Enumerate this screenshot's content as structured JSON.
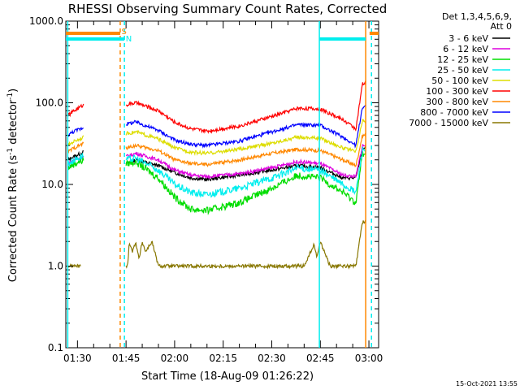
{
  "chart_data": {
    "type": "line",
    "title": "RHESSI Observing Summary Count Rates, Corrected",
    "xlabel": "Start Time (18-Aug-09 01:26:22)",
    "ylabel": "Corrected Count Rate (s⁻¹ detector⁻¹)",
    "ylabel_parts": {
      "base": "Corrected Count Rate (s",
      "sup1": "-1",
      "mid": " detector",
      "sup2": "-1",
      "end": ")"
    },
    "y_scale": "log",
    "ylim": [
      0.1,
      1000
    ],
    "y_tick_labels": [
      "0.1",
      "1.0",
      "10.0",
      "100.0",
      "1000.0"
    ],
    "y_tick_values": [
      0.1,
      1,
      10,
      100,
      1000
    ],
    "xlim_minutes": [
      86.4,
      183
    ],
    "x_tick_labels": [
      "01:30",
      "01:45",
      "02:00",
      "02:15",
      "02:30",
      "02:45",
      "03:00"
    ],
    "x_tick_minutes": [
      90,
      105,
      120,
      135,
      150,
      165,
      180
    ],
    "legend_title_lines": [
      "Det 1,3,4,5,6,9,",
      "Att 0"
    ],
    "legend_placement": "outside-right",
    "series": [
      {
        "name": "3 - 6 keV",
        "color": "#000000",
        "x": [
          87,
          89,
          92,
          105,
          108,
          115,
          120,
          125,
          130,
          140,
          150,
          158,
          165,
          172,
          176,
          178
        ],
        "values": [
          20,
          22,
          25,
          18,
          20,
          17,
          14,
          12,
          11.5,
          13,
          15,
          17,
          16,
          12,
          12,
          28
        ]
      },
      {
        "name": "6 - 12 keV",
        "color": "#dd00dd",
        "x": [
          87,
          89,
          92,
          105,
          108,
          115,
          120,
          125,
          130,
          140,
          150,
          158,
          165,
          172,
          176,
          178
        ],
        "values": [
          18,
          20,
          22,
          22,
          24,
          20,
          15,
          13,
          12.5,
          13.5,
          16,
          19,
          18,
          13,
          12.5,
          30
        ]
      },
      {
        "name": "12 - 25 keV",
        "color": "#00dd00",
        "x": [
          87,
          89,
          92,
          105,
          108,
          115,
          120,
          125,
          130,
          140,
          150,
          158,
          165,
          172,
          176,
          178
        ],
        "values": [
          16,
          18,
          20,
          18,
          19,
          12,
          7,
          5,
          4.8,
          6,
          9,
          13,
          12,
          8,
          6,
          24
        ]
      },
      {
        "name": "25 - 50 keV",
        "color": "#00eeee",
        "x": [
          87,
          89,
          92,
          105,
          108,
          115,
          120,
          125,
          130,
          140,
          150,
          158,
          165,
          172,
          176,
          178
        ],
        "values": [
          18,
          20,
          23,
          20,
          21,
          15,
          10,
          8,
          7.5,
          9,
          12,
          16,
          15,
          10,
          8,
          27
        ]
      },
      {
        "name": "50 - 100 keV",
        "color": "#dddd00",
        "x": [
          87,
          89,
          92,
          105,
          108,
          115,
          120,
          125,
          130,
          140,
          150,
          158,
          165,
          172,
          176,
          178
        ],
        "values": [
          30,
          34,
          38,
          42,
          44,
          36,
          28,
          25,
          24,
          27,
          32,
          38,
          37,
          28,
          25,
          60
        ]
      },
      {
        "name": "100 - 300 keV",
        "color": "#ff0000",
        "x": [
          87,
          89,
          92,
          105,
          108,
          115,
          120,
          125,
          130,
          140,
          150,
          158,
          165,
          172,
          176,
          178
        ],
        "values": [
          70,
          80,
          95,
          95,
          100,
          80,
          58,
          48,
          45,
          52,
          68,
          86,
          84,
          62,
          48,
          170
        ]
      },
      {
        "name": "300 - 800 keV",
        "color": "#ff8800",
        "x": [
          87,
          89,
          92,
          105,
          108,
          115,
          120,
          125,
          130,
          140,
          150,
          158,
          165,
          172,
          176,
          178
        ],
        "values": [
          25,
          28,
          32,
          28,
          30,
          26,
          20,
          18,
          17.5,
          20,
          24,
          27,
          26,
          20,
          17,
          40
        ]
      },
      {
        "name": "800 - 7000 keV",
        "color": "#0000ff",
        "x": [
          87,
          89,
          92,
          105,
          108,
          115,
          120,
          125,
          130,
          140,
          150,
          158,
          165,
          172,
          176,
          178
        ],
        "values": [
          40,
          45,
          50,
          55,
          58,
          46,
          35,
          31,
          30,
          34,
          44,
          54,
          53,
          38,
          30,
          90
        ]
      },
      {
        "name": "7000 - 15000 keV",
        "color": "#887700",
        "x": [
          87,
          89,
          91,
          105.5,
          106,
          107,
          108,
          109,
          110,
          111,
          113,
          115,
          117,
          150,
          155,
          160,
          163,
          164,
          165,
          168,
          172,
          176,
          178
        ],
        "values": [
          1,
          1,
          1,
          1,
          2,
          1.5,
          2,
          1.2,
          2,
          1.5,
          2,
          1,
          1,
          1,
          1,
          1,
          1.8,
          1.3,
          2,
          1,
          1,
          1,
          3.5
        ]
      }
    ],
    "markers": [
      {
        "label": "S",
        "color": "#ff8800"
      },
      {
        "label": "N",
        "color": "#00eeee"
      }
    ]
  },
  "timestamp": "15-Oct-2021 13:55"
}
